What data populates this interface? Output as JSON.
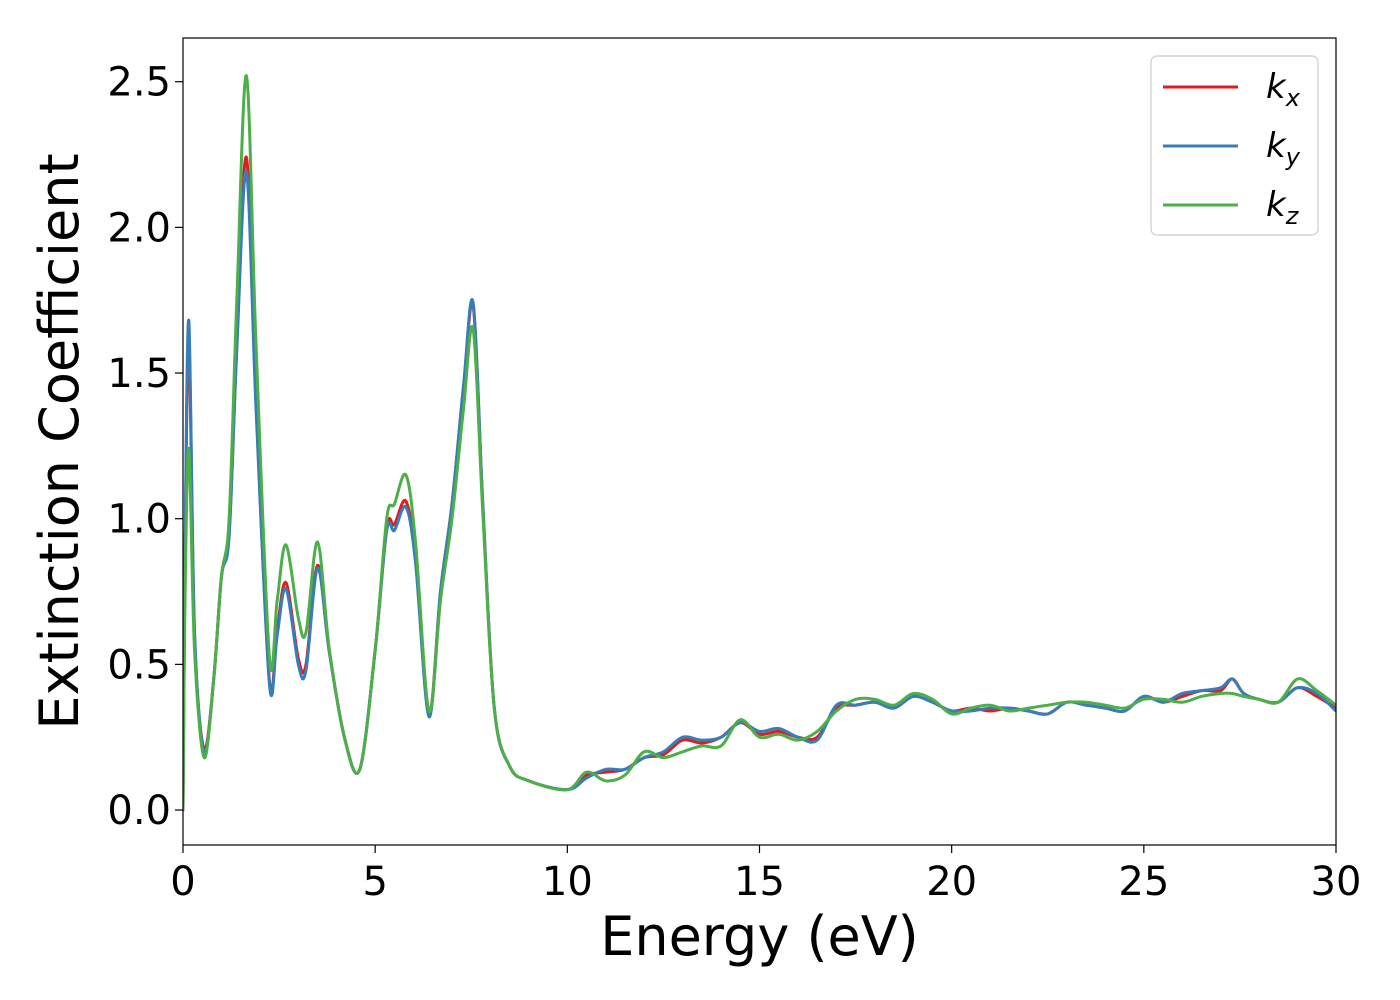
{
  "chart_data": {
    "type": "line",
    "title": "",
    "xlabel": "Energy (eV)",
    "ylabel": "Extinction Coefficient",
    "xlim": [
      0,
      30
    ],
    "ylim": [
      -0.12,
      2.65
    ],
    "xticks": [
      0,
      5,
      10,
      15,
      20,
      25,
      30
    ],
    "xtick_labels": [
      "0",
      "5",
      "10",
      "15",
      "20",
      "25",
      "30"
    ],
    "yticks": [
      0.0,
      0.5,
      1.0,
      1.5,
      2.0,
      2.5
    ],
    "ytick_labels": [
      "0.0",
      "0.5",
      "1.0",
      "1.5",
      "2.0",
      "2.5"
    ],
    "grid": false,
    "legend_position": "top-right",
    "series": [
      {
        "name": "k",
        "subscript": "x",
        "color": "#e41a1c",
        "x": [
          0.0,
          0.05,
          0.15,
          0.3,
          0.55,
          0.8,
          1.0,
          1.2,
          1.4,
          1.65,
          1.9,
          2.25,
          2.45,
          2.68,
          3.0,
          3.2,
          3.5,
          3.8,
          4.2,
          4.6,
          5.0,
          5.3,
          5.5,
          5.8,
          6.05,
          6.4,
          6.7,
          7.0,
          7.3,
          7.55,
          7.8,
          8.1,
          8.5,
          9.0,
          10.0,
          10.5,
          11.0,
          11.5,
          12.0,
          12.5,
          13.0,
          13.5,
          14.0,
          14.5,
          15.0,
          15.5,
          16.0,
          16.5,
          17.0,
          17.5,
          18.0,
          18.5,
          19.0,
          19.5,
          20.0,
          20.5,
          21.0,
          21.5,
          22.0,
          22.5,
          23.0,
          23.5,
          24.0,
          24.5,
          25.0,
          25.5,
          26.0,
          26.5,
          27.0,
          27.3,
          27.6,
          28.0,
          28.5,
          29.0,
          29.5,
          30.0
        ],
        "y": [
          0.0,
          0.8,
          1.62,
          0.6,
          0.21,
          0.45,
          0.8,
          0.95,
          1.6,
          2.24,
          1.4,
          0.44,
          0.62,
          0.78,
          0.52,
          0.5,
          0.84,
          0.55,
          0.25,
          0.14,
          0.55,
          0.97,
          0.98,
          1.06,
          0.86,
          0.33,
          0.75,
          1.05,
          1.45,
          1.73,
          1.05,
          0.35,
          0.15,
          0.1,
          0.07,
          0.12,
          0.13,
          0.14,
          0.18,
          0.19,
          0.24,
          0.23,
          0.25,
          0.3,
          0.26,
          0.27,
          0.25,
          0.25,
          0.35,
          0.36,
          0.37,
          0.35,
          0.39,
          0.37,
          0.34,
          0.35,
          0.34,
          0.35,
          0.34,
          0.33,
          0.37,
          0.36,
          0.35,
          0.34,
          0.39,
          0.37,
          0.39,
          0.41,
          0.41,
          0.45,
          0.4,
          0.38,
          0.37,
          0.42,
          0.39,
          0.35
        ]
      },
      {
        "name": "k",
        "subscript": "y",
        "color": "#377eb8",
        "x": [
          0.0,
          0.05,
          0.15,
          0.3,
          0.55,
          0.8,
          1.0,
          1.2,
          1.4,
          1.65,
          1.9,
          2.25,
          2.45,
          2.68,
          3.0,
          3.2,
          3.5,
          3.8,
          4.2,
          4.6,
          5.0,
          5.3,
          5.5,
          5.8,
          6.05,
          6.4,
          6.7,
          7.0,
          7.3,
          7.55,
          7.8,
          8.1,
          8.5,
          9.0,
          10.0,
          10.5,
          11.0,
          11.5,
          12.0,
          12.5,
          13.0,
          13.5,
          14.0,
          14.5,
          15.0,
          15.5,
          16.0,
          16.5,
          17.0,
          17.5,
          18.0,
          18.5,
          19.0,
          19.5,
          20.0,
          20.5,
          21.0,
          21.5,
          22.0,
          22.5,
          23.0,
          23.5,
          24.0,
          24.5,
          25.0,
          25.5,
          26.0,
          26.5,
          27.0,
          27.3,
          27.6,
          28.0,
          28.5,
          29.0,
          29.5,
          30.0
        ],
        "y": [
          0.0,
          0.85,
          1.68,
          0.62,
          0.2,
          0.45,
          0.8,
          0.94,
          1.58,
          2.19,
          1.38,
          0.43,
          0.6,
          0.76,
          0.5,
          0.48,
          0.83,
          0.55,
          0.25,
          0.14,
          0.55,
          0.96,
          0.96,
          1.04,
          0.85,
          0.32,
          0.75,
          1.05,
          1.46,
          1.74,
          1.05,
          0.35,
          0.15,
          0.1,
          0.07,
          0.11,
          0.14,
          0.14,
          0.18,
          0.2,
          0.25,
          0.24,
          0.25,
          0.3,
          0.27,
          0.28,
          0.25,
          0.24,
          0.36,
          0.36,
          0.37,
          0.35,
          0.39,
          0.37,
          0.34,
          0.34,
          0.35,
          0.35,
          0.34,
          0.33,
          0.37,
          0.36,
          0.35,
          0.34,
          0.39,
          0.37,
          0.4,
          0.41,
          0.42,
          0.45,
          0.4,
          0.38,
          0.37,
          0.42,
          0.4,
          0.34
        ]
      },
      {
        "name": "k",
        "subscript": "z",
        "color": "#4daf4a",
        "x": [
          0.0,
          0.05,
          0.15,
          0.3,
          0.55,
          0.8,
          1.0,
          1.2,
          1.4,
          1.65,
          1.9,
          2.25,
          2.45,
          2.68,
          3.0,
          3.2,
          3.5,
          3.8,
          4.2,
          4.6,
          5.0,
          5.3,
          5.5,
          5.8,
          6.05,
          6.4,
          6.7,
          7.0,
          7.3,
          7.55,
          7.8,
          8.1,
          8.5,
          9.0,
          10.0,
          10.5,
          11.0,
          11.5,
          12.0,
          12.5,
          13.0,
          13.5,
          14.0,
          14.5,
          15.0,
          15.5,
          16.0,
          16.5,
          17.0,
          17.5,
          18.0,
          18.5,
          19.0,
          19.5,
          20.0,
          20.5,
          21.0,
          21.5,
          22.0,
          22.5,
          23.0,
          23.5,
          24.0,
          24.5,
          25.0,
          25.5,
          26.0,
          26.5,
          27.0,
          27.3,
          27.6,
          28.0,
          28.5,
          29.0,
          29.5,
          30.0
        ],
        "y": [
          0.0,
          0.7,
          1.24,
          0.55,
          0.18,
          0.45,
          0.8,
          1.0,
          1.75,
          2.52,
          1.6,
          0.52,
          0.72,
          0.91,
          0.66,
          0.61,
          0.92,
          0.56,
          0.25,
          0.14,
          0.55,
          1.0,
          1.05,
          1.15,
          0.92,
          0.34,
          0.72,
          1.0,
          1.38,
          1.65,
          1.02,
          0.35,
          0.15,
          0.1,
          0.07,
          0.13,
          0.1,
          0.12,
          0.2,
          0.18,
          0.2,
          0.22,
          0.22,
          0.31,
          0.25,
          0.26,
          0.24,
          0.27,
          0.34,
          0.38,
          0.38,
          0.36,
          0.4,
          0.38,
          0.33,
          0.35,
          0.36,
          0.34,
          0.35,
          0.36,
          0.37,
          0.37,
          0.36,
          0.35,
          0.38,
          0.38,
          0.37,
          0.39,
          0.4,
          0.4,
          0.39,
          0.38,
          0.37,
          0.45,
          0.41,
          0.36
        ]
      }
    ]
  }
}
